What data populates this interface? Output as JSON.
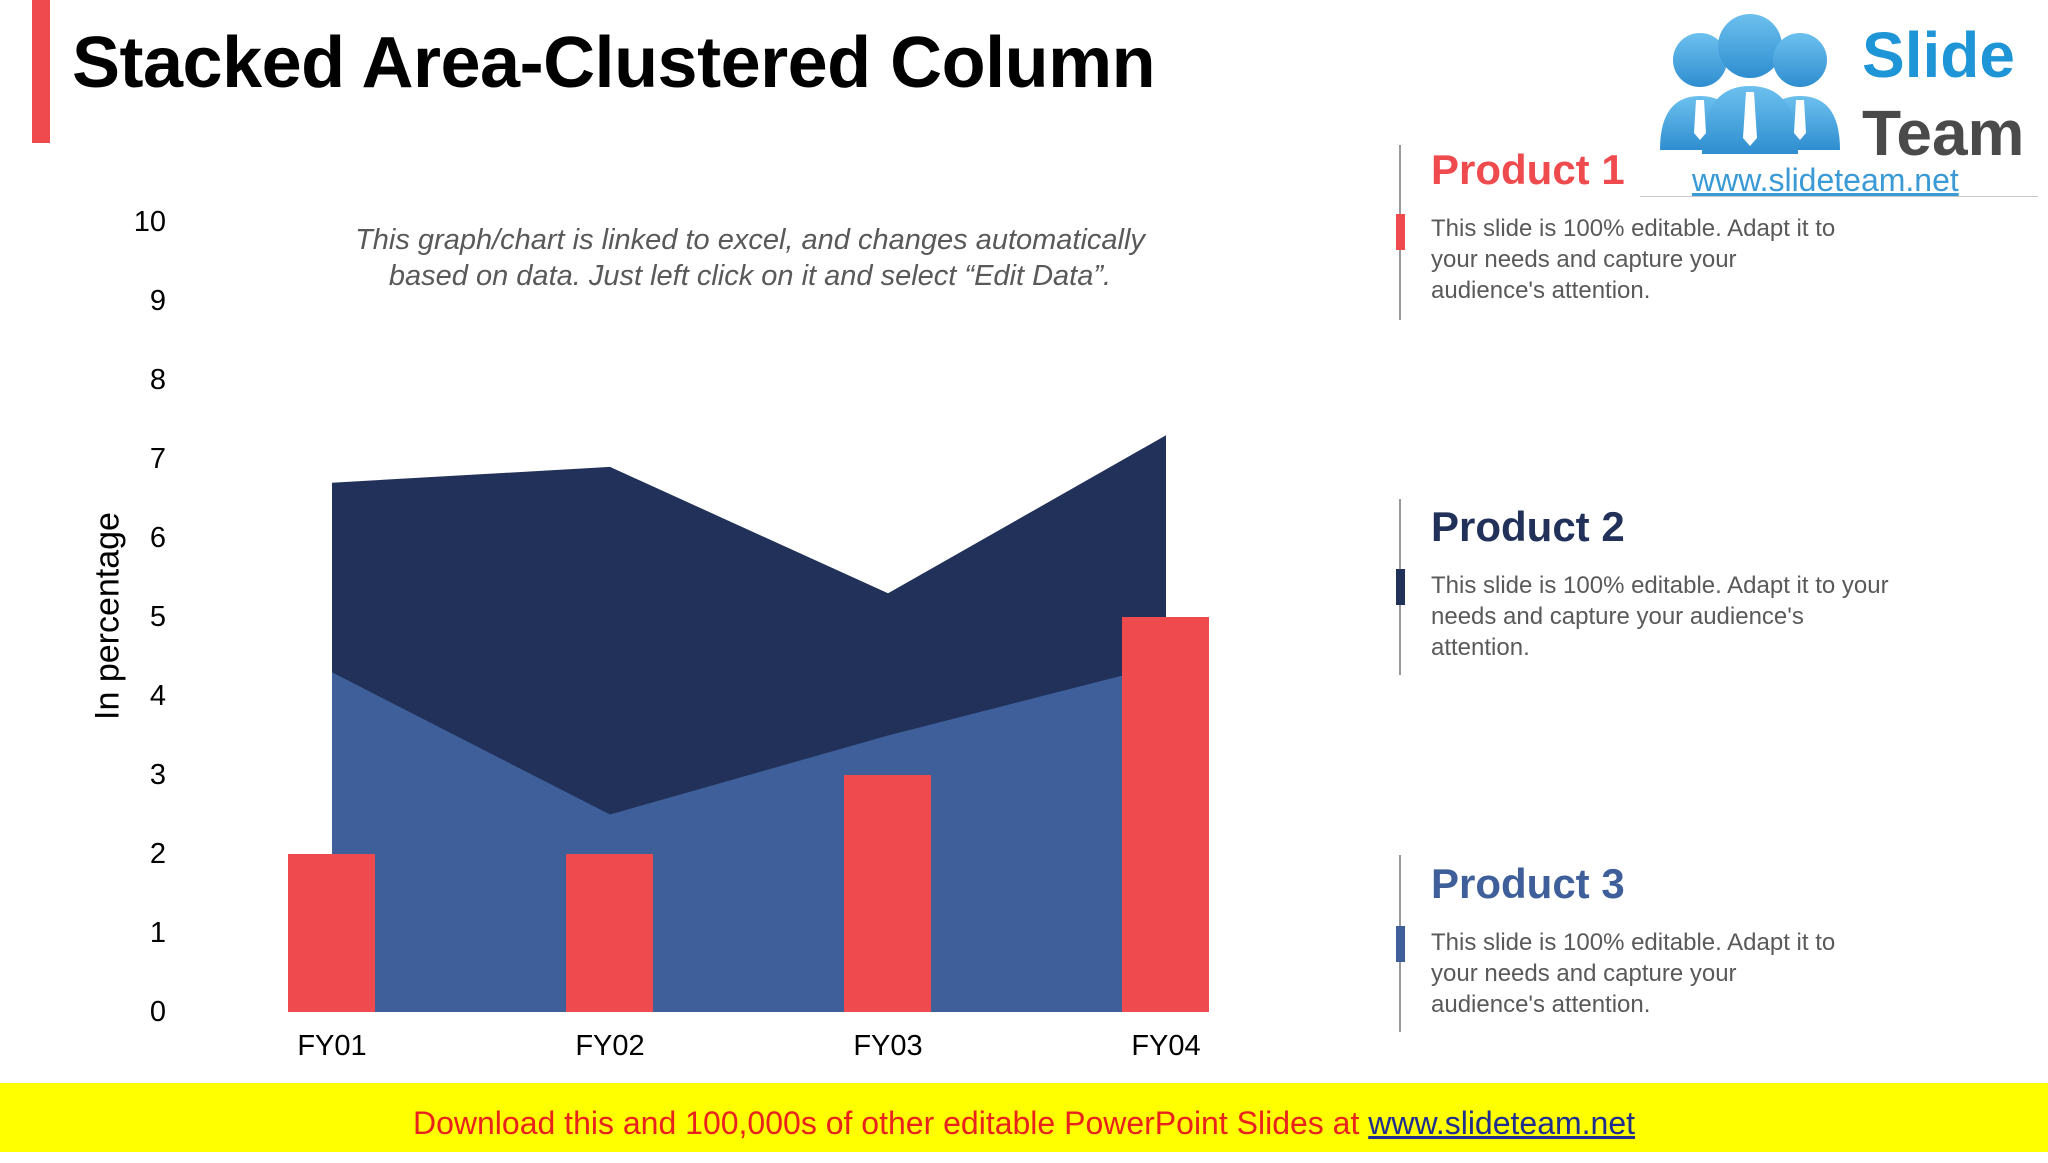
{
  "slide": {
    "title": "Stacked Area-Clustered Column",
    "note_line1": "This graph/chart is linked to excel, and changes automatically",
    "note_line2": "based on data. Just left click on it and select “Edit Data”.",
    "accent_color": "#EF4A4D"
  },
  "logo": {
    "word1": "Slide",
    "word2": "Team",
    "url": "www.slideteam.net"
  },
  "chart_data": {
    "type": "area+bar",
    "title": "",
    "xlabel": "",
    "ylabel": "In percentage",
    "ylim": [
      0,
      10
    ],
    "yticks": [
      "0",
      "1",
      "2",
      "3",
      "4",
      "5",
      "6",
      "7",
      "8",
      "9",
      "10"
    ],
    "grid": false,
    "categories": [
      "FY01",
      "FY02",
      "FY03",
      "FY04"
    ],
    "series": [
      {
        "name": "Product 1",
        "type": "column",
        "color": "#EF4A4D",
        "values": [
          2,
          2,
          3,
          5
        ]
      },
      {
        "name": "Product 2",
        "type": "stacked-area",
        "color": "#213159",
        "values": [
          2.4,
          4.4,
          1.8,
          2.9
        ]
      },
      {
        "name": "Product 3",
        "type": "stacked-area",
        "color": "#3E5F9A",
        "values": [
          4.3,
          2.5,
          3.5,
          4.4
        ]
      }
    ],
    "stacked_totals": [
      6.7,
      6.9,
      5.3,
      7.3
    ],
    "legend_position": "right"
  },
  "panel": {
    "items": [
      {
        "title": "Product 1",
        "color": "#EF4A4D",
        "text": "This slide is 100% editable. Adapt it to your needs and capture your audience's attention."
      },
      {
        "title": "Product 2",
        "color": "#213159",
        "text": "This slide is 100% editable. Adapt it to your needs and capture your audience's attention."
      },
      {
        "title": "Product 3",
        "color": "#3E5F9A",
        "text": "This slide is 100% editable. Adapt it to your needs and capture your audience's attention."
      }
    ]
  },
  "footer": {
    "text": "Download this and 100,000s of other editable PowerPoint Slides at ",
    "link": "www.slideteam.net"
  }
}
